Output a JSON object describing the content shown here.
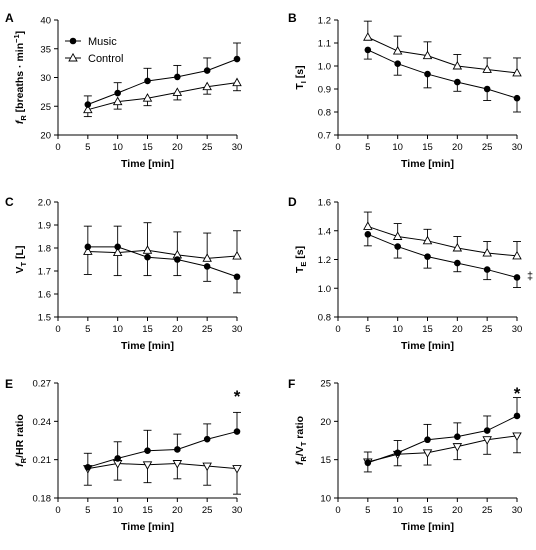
{
  "chart_data": [
    {
      "panel": "A",
      "type": "line",
      "x": [
        5,
        10,
        15,
        20,
        25,
        30
      ],
      "xlabel": "Time [min]",
      "ylabel": {
        "main": "f",
        "sub": "R",
        "rest": " [breaths · min",
        "sup": "−1",
        "end": "]"
      },
      "xlim": [
        0,
        30
      ],
      "ylim": [
        20,
        40
      ],
      "xticks": [
        0,
        5,
        10,
        15,
        20,
        25,
        30
      ],
      "yticks": [
        20,
        25,
        30,
        35,
        40
      ],
      "legend": {
        "placement": "top-left",
        "entries": [
          "Music",
          "Control"
        ]
      },
      "series": [
        {
          "name": "Music",
          "marker": "filled-circle",
          "values": [
            25.3,
            27.3,
            29.4,
            30.1,
            31.2,
            33.2
          ],
          "err": [
            1.5,
            1.8,
            2.2,
            2.0,
            2.2,
            2.8
          ]
        },
        {
          "name": "Control",
          "marker": "open-triangle-up",
          "values": [
            24.4,
            25.8,
            26.4,
            27.4,
            28.4,
            29.1
          ],
          "err": [
            1.2,
            1.3,
            1.3,
            1.3,
            1.3,
            1.4
          ]
        }
      ],
      "annotations": []
    },
    {
      "panel": "B",
      "type": "line",
      "x": [
        5,
        10,
        15,
        20,
        25,
        30
      ],
      "xlabel": "Time [min]",
      "ylabel": {
        "main": "T",
        "sub": "I",
        "rest": " [s]"
      },
      "xlim": [
        0,
        30
      ],
      "ylim": [
        0.7,
        1.2
      ],
      "xticks": [
        0,
        5,
        10,
        15,
        20,
        25,
        30
      ],
      "yticks": [
        0.7,
        0.8,
        0.9,
        1.0,
        1.1,
        1.2
      ],
      "series": [
        {
          "name": "Music",
          "marker": "filled-circle",
          "values": [
            1.07,
            1.01,
            0.965,
            0.93,
            0.9,
            0.86
          ],
          "err": [
            0.04,
            0.05,
            0.06,
            0.04,
            0.05,
            0.06
          ]
        },
        {
          "name": "Control",
          "marker": "open-triangle-up",
          "values": [
            1.125,
            1.065,
            1.045,
            1.0,
            0.985,
            0.97
          ],
          "err": [
            0.07,
            0.065,
            0.06,
            0.05,
            0.05,
            0.065
          ]
        }
      ],
      "annotations": []
    },
    {
      "panel": "C",
      "type": "line",
      "x": [
        5,
        10,
        15,
        20,
        25,
        30
      ],
      "xlabel": "Time [min]",
      "ylabel": {
        "main": "V",
        "sub": "T",
        "rest": " [L]"
      },
      "xlim": [
        0,
        30
      ],
      "ylim": [
        1.5,
        2.0
      ],
      "xticks": [
        0,
        5,
        10,
        15,
        20,
        25,
        30
      ],
      "yticks": [
        1.5,
        1.6,
        1.7,
        1.8,
        1.9,
        2.0
      ],
      "series": [
        {
          "name": "Music",
          "marker": "filled-circle",
          "values": [
            1.805,
            1.805,
            1.76,
            1.75,
            1.72,
            1.675
          ],
          "err": [
            0.09,
            0.09,
            0.08,
            0.07,
            0.065,
            0.07
          ]
        },
        {
          "name": "Control",
          "marker": "open-triangle-up",
          "values": [
            1.785,
            1.78,
            1.79,
            1.77,
            1.755,
            1.765
          ],
          "err": [
            0.1,
            0.1,
            0.12,
            0.1,
            0.11,
            0.11
          ]
        }
      ],
      "annotations": []
    },
    {
      "panel": "D",
      "type": "line",
      "x": [
        5,
        10,
        15,
        20,
        25,
        30
      ],
      "xlabel": "Time [min]",
      "ylabel": {
        "main": "T",
        "sub": "E",
        "rest": " [s]"
      },
      "xlim": [
        0,
        30
      ],
      "ylim": [
        0.8,
        1.6
      ],
      "xticks": [
        0,
        5,
        10,
        15,
        20,
        25,
        30
      ],
      "yticks": [
        0.8,
        1.0,
        1.2,
        1.4,
        1.6
      ],
      "series": [
        {
          "name": "Music",
          "marker": "filled-circle",
          "values": [
            1.375,
            1.29,
            1.22,
            1.175,
            1.13,
            1.075
          ],
          "err": [
            0.08,
            0.08,
            0.08,
            0.06,
            0.07,
            0.07
          ]
        },
        {
          "name": "Control",
          "marker": "open-triangle-up",
          "values": [
            1.43,
            1.36,
            1.33,
            1.28,
            1.245,
            1.225
          ],
          "err": [
            0.1,
            0.09,
            0.08,
            0.08,
            0.08,
            0.1
          ]
        }
      ],
      "annotations": [
        {
          "text": "‡",
          "x": 30,
          "y": 1.09
        }
      ]
    },
    {
      "panel": "E",
      "type": "line",
      "x": [
        5,
        10,
        15,
        20,
        25,
        30
      ],
      "xlabel": "Time [min]",
      "ylabel": {
        "main": "f",
        "sub": "R",
        "rest": "/HR ratio"
      },
      "xlim": [
        0,
        30
      ],
      "ylim": [
        0.18,
        0.27
      ],
      "xticks": [
        0,
        5,
        10,
        15,
        20,
        25,
        30
      ],
      "yticks": [
        0.18,
        0.21,
        0.24,
        0.27
      ],
      "series": [
        {
          "name": "Music",
          "marker": "filled-circle",
          "values": [
            0.204,
            0.211,
            0.217,
            0.218,
            0.226,
            0.232
          ],
          "err": [
            0.011,
            0.013,
            0.016,
            0.012,
            0.012,
            0.015
          ]
        },
        {
          "name": "Control",
          "marker": "open-triangle-down",
          "values": [
            0.203,
            0.207,
            0.206,
            0.207,
            0.205,
            0.203
          ],
          "err": [
            0.013,
            0.013,
            0.014,
            0.012,
            0.015,
            0.02
          ]
        }
      ],
      "annotations": [
        {
          "text": "*",
          "x": 30,
          "y": 0.262
        }
      ]
    },
    {
      "panel": "F",
      "type": "line",
      "x": [
        5,
        10,
        15,
        20,
        25,
        30
      ],
      "xlabel": "Time [min]",
      "ylabel": {
        "main": "f",
        "sub": "R",
        "mid": "/V",
        "sub2": "T",
        "rest": " ratio"
      },
      "xlim": [
        0,
        30
      ],
      "ylim": [
        10,
        25
      ],
      "xticks": [
        0,
        5,
        10,
        15,
        20,
        25,
        30
      ],
      "yticks": [
        10,
        15,
        20,
        25
      ],
      "series": [
        {
          "name": "Music",
          "marker": "filled-circle",
          "values": [
            14.6,
            15.9,
            17.6,
            18.0,
            18.8,
            20.7
          ],
          "err": [
            1.2,
            1.6,
            2.0,
            1.8,
            1.9,
            2.4
          ]
        },
        {
          "name": "Control",
          "marker": "open-triangle-down",
          "values": [
            14.7,
            15.7,
            15.9,
            16.7,
            17.6,
            18.1
          ],
          "err": [
            1.3,
            1.5,
            1.6,
            1.7,
            1.9,
            2.2
          ]
        }
      ],
      "annotations": [
        {
          "text": "*",
          "x": 30,
          "y": 24.1
        }
      ]
    }
  ]
}
